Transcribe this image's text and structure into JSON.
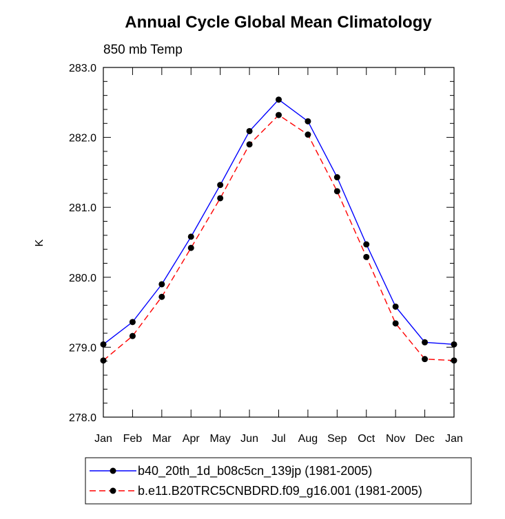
{
  "chart_data": {
    "type": "line",
    "title": "Annual Cycle Global Mean Climatology",
    "subtitle": "850 mb Temp",
    "xlabel": "",
    "ylabel": "K",
    "categories": [
      "Jan",
      "Feb",
      "Mar",
      "Apr",
      "May",
      "Jun",
      "Jul",
      "Aug",
      "Sep",
      "Oct",
      "Nov",
      "Dec",
      "Jan"
    ],
    "ylim": [
      278.0,
      283.0
    ],
    "yticks": [
      "278.0",
      "279.0",
      "280.0",
      "281.0",
      "282.0",
      "283.0"
    ],
    "grid": false,
    "legend_position": "bottom",
    "series": [
      {
        "name": "b40_20th_1d_b08c5cn_139jp (1981-2005)",
        "color": "#0000ff",
        "dash": "solid",
        "marker": "filled-circle",
        "values": [
          279.04,
          279.36,
          279.9,
          280.58,
          281.32,
          282.09,
          282.54,
          282.23,
          281.43,
          280.47,
          279.58,
          279.07,
          279.04
        ]
      },
      {
        "name": "b.e11.B20TRC5CNBDRD.f09_g16.001 (1981-2005)",
        "color": "#ff0000",
        "dash": "dashed",
        "marker": "filled-circle",
        "values": [
          278.81,
          279.16,
          279.72,
          280.42,
          281.13,
          281.9,
          282.32,
          282.04,
          281.23,
          280.29,
          279.34,
          278.83,
          278.81
        ]
      }
    ]
  }
}
